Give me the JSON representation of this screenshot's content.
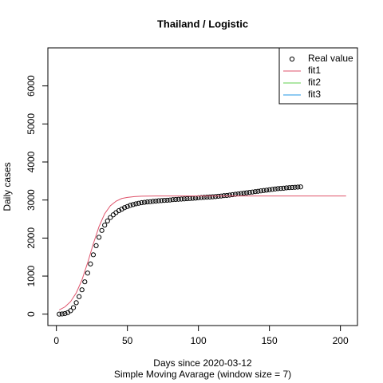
{
  "chart_data": {
    "type": "scatter",
    "title": "Thailand / Logistic",
    "x_label": "Days since 2020-03-12",
    "subtitle": "Simple Moving Avarage (window size = 7)",
    "y_label": "Daily cases",
    "xlim": [
      -6,
      212
    ],
    "ylim": [
      -300,
      7000
    ],
    "xticks": [
      0,
      50,
      100,
      150,
      200
    ],
    "yticks": [
      0,
      1000,
      2000,
      3000,
      4000,
      5000,
      6000
    ],
    "legend": "top-right",
    "series": [
      {
        "name": "Real value",
        "color": "#000000",
        "marker": "circle",
        "x": [
          2,
          4,
          6,
          8,
          10,
          12,
          14,
          16,
          18,
          20,
          22,
          24,
          26,
          28,
          30,
          32,
          34,
          36,
          38,
          40,
          42,
          44,
          46,
          48,
          50,
          52,
          54,
          56,
          58,
          60,
          62,
          64,
          66,
          68,
          70,
          72,
          74,
          76,
          78,
          80,
          82,
          84,
          86,
          88,
          90,
          92,
          94,
          96,
          98,
          100,
          102,
          104,
          106,
          108,
          110,
          112,
          114,
          116,
          118,
          120,
          122,
          124,
          126,
          128,
          130,
          132,
          134,
          136,
          138,
          140,
          142,
          144,
          146,
          148,
          150,
          152,
          154,
          156,
          158,
          160,
          162,
          164,
          166,
          168,
          170,
          172
        ],
        "values": [
          0,
          5,
          15,
          40,
          90,
          170,
          300,
          460,
          640,
          850,
          1080,
          1320,
          1560,
          1800,
          2020,
          2200,
          2340,
          2450,
          2540,
          2610,
          2670,
          2720,
          2760,
          2800,
          2830,
          2860,
          2880,
          2900,
          2915,
          2930,
          2940,
          2950,
          2955,
          2965,
          2970,
          2980,
          2985,
          2990,
          2995,
          3000,
          3010,
          3015,
          3020,
          3025,
          3030,
          3035,
          3040,
          3045,
          3050,
          3060,
          3065,
          3070,
          3075,
          3080,
          3085,
          3090,
          3100,
          3105,
          3115,
          3120,
          3130,
          3140,
          3150,
          3160,
          3170,
          3180,
          3190,
          3200,
          3210,
          3220,
          3230,
          3240,
          3250,
          3260,
          3270,
          3280,
          3290,
          3300,
          3305,
          3310,
          3320,
          3325,
          3330,
          3335,
          3340,
          3345
        ]
      },
      {
        "name": "fit1",
        "color": "#DF536B",
        "marker": "line",
        "x": [
          2,
          6,
          10,
          14,
          18,
          22,
          26,
          30,
          34,
          38,
          42,
          46,
          50,
          55,
          60,
          70,
          80,
          100,
          150,
          204
        ],
        "values": [
          110,
          190,
          330,
          560,
          900,
          1350,
          1850,
          2300,
          2640,
          2850,
          2970,
          3040,
          3070,
          3090,
          3100,
          3105,
          3105,
          3105,
          3105,
          3105
        ]
      },
      {
        "name": "fit2",
        "color": "#61D04F",
        "marker": "line"
      },
      {
        "name": "fit3",
        "color": "#2297E6",
        "marker": "line"
      }
    ]
  }
}
